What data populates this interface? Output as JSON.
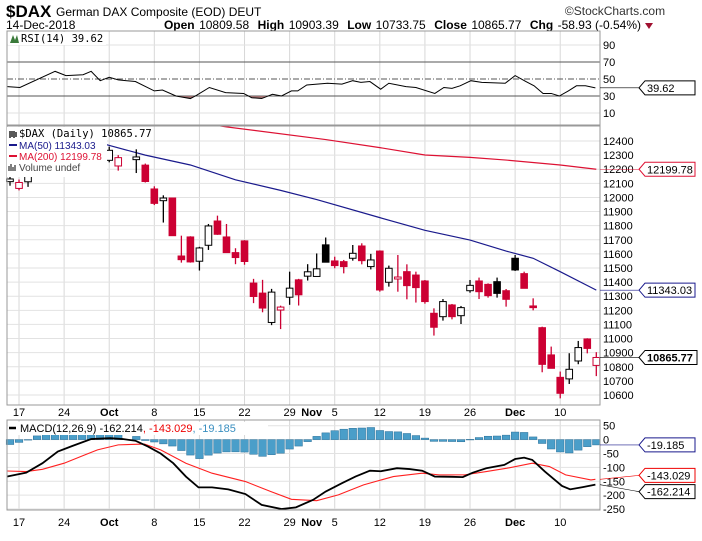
{
  "header": {
    "symbol": "$DAX",
    "name": "German DAX Composite (EOD) DEUT",
    "copyright": "©StockCharts.com",
    "date": "14-Dec-2018",
    "open_label": "Open",
    "open": "10809.58",
    "high_label": "High",
    "high": "10903.39",
    "low_label": "Low",
    "low": "10733.75",
    "close_label": "Close",
    "close": "10865.77",
    "chg_label": "Chg",
    "chg": "-58.93 (-0.54%)",
    "chg_icon": "triangle-down-icon"
  },
  "colors": {
    "up": "#000000",
    "down": "#cc0033",
    "ma50": "#1a1a8c",
    "ma200": "#dd1133",
    "hist": "#4a9ec9",
    "rsi_fill": "#a07070"
  },
  "chart_data": [
    {
      "type": "line",
      "title": "RSI(14) 39.62",
      "legend": "RSI(14) 39.62",
      "ylim": [
        0,
        100
      ],
      "yticks": [
        "90",
        "70",
        "50",
        "30",
        "10"
      ],
      "levels": [
        70,
        50,
        30
      ],
      "current_label": "39.62",
      "points": [
        [
          -0.3,
          41
        ],
        [
          1.1,
          40
        ],
        [
          5,
          59
        ],
        [
          6.2,
          54
        ],
        [
          8.1,
          55
        ],
        [
          9,
          59
        ],
        [
          10,
          48
        ],
        [
          11,
          52
        ],
        [
          12,
          49
        ],
        [
          13.9,
          47
        ],
        [
          16,
          36
        ],
        [
          16.9,
          37
        ],
        [
          18.4,
          30
        ],
        [
          20,
          27
        ],
        [
          20.7,
          31
        ],
        [
          22.1,
          40
        ],
        [
          23.9,
          34
        ],
        [
          25.9,
          33
        ],
        [
          26.8,
          28
        ],
        [
          27.9,
          27
        ],
        [
          29.1,
          32
        ],
        [
          30.1,
          30
        ],
        [
          31.2,
          36
        ],
        [
          31.9,
          36
        ],
        [
          32.9,
          43
        ],
        [
          35.2,
          45
        ],
        [
          36.8,
          44
        ],
        [
          38,
          48
        ],
        [
          38.9,
          46
        ],
        [
          39.9,
          47
        ],
        [
          41.1,
          38
        ],
        [
          42,
          45
        ],
        [
          43.9,
          41
        ],
        [
          45,
          40
        ],
        [
          47.1,
          33
        ],
        [
          48.1,
          40
        ],
        [
          49,
          39
        ],
        [
          49.9,
          42
        ],
        [
          51.1,
          48
        ],
        [
          52.3,
          46
        ],
        [
          54.9,
          45
        ],
        [
          56,
          54
        ],
        [
          57.2,
          47
        ],
        [
          58.1,
          42
        ],
        [
          59.1,
          33
        ],
        [
          60,
          33
        ],
        [
          60.9,
          30
        ],
        [
          61.9,
          36
        ],
        [
          62.8,
          42
        ],
        [
          63.8,
          42
        ],
        [
          64.9,
          39.62
        ]
      ]
    },
    {
      "type": "candlestick",
      "title": "$DAX (Daily) 10865.77",
      "legend": [
        {
          "name": "$DAX (Daily) 10865.77"
        },
        {
          "name": "MA(50) 11343.03"
        },
        {
          "name": "MA(200) 12199.78"
        },
        {
          "name": "Volume undef"
        }
      ],
      "ylim": [
        10500,
        12490
      ],
      "yticks": [
        "12400",
        "12300",
        "12200",
        "12100",
        "12000",
        "11900",
        "11800",
        "11700",
        "11600",
        "11500",
        "11400",
        "11300",
        "11200",
        "11100",
        "11000",
        "10900",
        "10800",
        "10700",
        "10600"
      ],
      "tags": {
        "ma200": "12199.78",
        "ma50": "11343.03",
        "close": "10865.77"
      },
      "candles": [
        {
          "d": 0,
          "o": 12112,
          "h": 12147,
          "l": 12083,
          "c": 12131
        },
        {
          "d": 1,
          "o": 12064,
          "h": 12127,
          "l": 12050,
          "c": 12106
        },
        {
          "d": 2,
          "o": 12111,
          "h": 12180,
          "l": 12075,
          "c": 12168
        },
        {
          "d": 3,
          "o": 12170,
          "h": 12195,
          "l": 12160,
          "c": 12185
        },
        {
          "d": 4,
          "o": 12200,
          "h": 12280,
          "l": 12190,
          "c": 12260
        },
        {
          "d": 5,
          "o": 12270,
          "h": 12350,
          "l": 12250,
          "c": 12330
        },
        {
          "d": 6,
          "o": 12340,
          "h": 12360,
          "l": 12280,
          "c": 12300
        },
        {
          "d": 7,
          "o": 12300,
          "h": 12380,
          "l": 12290,
          "c": 12360
        },
        {
          "d": 8,
          "o": 12370,
          "h": 12420,
          "l": 12350,
          "c": 12400
        },
        {
          "d": 9,
          "o": 12385,
          "h": 12410,
          "l": 12300,
          "c": 12380
        },
        {
          "d": 10,
          "o": 12376,
          "h": 12382,
          "l": 12190,
          "c": 12249
        },
        {
          "d": 11,
          "o": 12263,
          "h": 12360,
          "l": 12249,
          "c": 12334
        },
        {
          "d": 12,
          "o": 12223,
          "h": 12300,
          "l": 12190,
          "c": 12282
        },
        {
          "d": 14,
          "o": 12268,
          "h": 12341,
          "l": 12173,
          "c": 12287
        },
        {
          "d": 15,
          "o": 12229,
          "h": 12240,
          "l": 12106,
          "c": 12113
        },
        {
          "d": 16,
          "o": 12060,
          "h": 12079,
          "l": 11946,
          "c": 11958
        },
        {
          "d": 17,
          "o": 11977,
          "h": 12015,
          "l": 11822,
          "c": 11996
        },
        {
          "d": 18,
          "o": 11996,
          "h": 11996,
          "l": 11729,
          "c": 11729
        },
        {
          "d": 19,
          "o": 11585,
          "h": 11729,
          "l": 11538,
          "c": 11559
        },
        {
          "d": 20,
          "o": 11720,
          "h": 11725,
          "l": 11538,
          "c": 11543
        },
        {
          "d": 21,
          "o": 11548,
          "h": 11650,
          "l": 11482,
          "c": 11642
        },
        {
          "d": 22,
          "o": 11661,
          "h": 11812,
          "l": 11628,
          "c": 11798
        },
        {
          "d": 23,
          "o": 11833,
          "h": 11871,
          "l": 11735,
          "c": 11739
        },
        {
          "d": 24,
          "o": 11720,
          "h": 11812,
          "l": 11609,
          "c": 11609
        },
        {
          "d": 25,
          "o": 11609,
          "h": 11640,
          "l": 11527,
          "c": 11574
        },
        {
          "d": 26,
          "o": 11692,
          "h": 11697,
          "l": 11523,
          "c": 11546
        },
        {
          "d": 27,
          "o": 11393,
          "h": 11423,
          "l": 11251,
          "c": 11298
        },
        {
          "d": 28,
          "o": 11322,
          "h": 11416,
          "l": 11186,
          "c": 11216
        },
        {
          "d": 29,
          "o": 11114,
          "h": 11352,
          "l": 11095,
          "c": 11329
        },
        {
          "d": 30,
          "o": 11202,
          "h": 11233,
          "l": 11067,
          "c": 11223
        },
        {
          "d": 31,
          "o": 11293,
          "h": 11474,
          "l": 11239,
          "c": 11357
        },
        {
          "d": 32,
          "o": 11416,
          "h": 11423,
          "l": 11234,
          "c": 11310
        },
        {
          "d": 33,
          "o": 11442,
          "h": 11527,
          "l": 11411,
          "c": 11473
        },
        {
          "d": 34,
          "o": 11440,
          "h": 11603,
          "l": 11440,
          "c": 11494
        },
        {
          "d": 35,
          "o": 11664,
          "h": 11716,
          "l": 11540,
          "c": 11541
        },
        {
          "d": 36,
          "o": 11550,
          "h": 11580,
          "l": 11498,
          "c": 11517
        },
        {
          "d": 37,
          "o": 11545,
          "h": 11557,
          "l": 11462,
          "c": 11510
        },
        {
          "d": 38,
          "o": 11569,
          "h": 11663,
          "l": 11552,
          "c": 11604
        },
        {
          "d": 39,
          "o": 11656,
          "h": 11675,
          "l": 11526,
          "c": 11552
        },
        {
          "d": 40,
          "o": 11510,
          "h": 11600,
          "l": 11490,
          "c": 11557
        },
        {
          "d": 41,
          "o": 11620,
          "h": 11625,
          "l": 11332,
          "c": 11344
        },
        {
          "d": 42,
          "o": 11399,
          "h": 11517,
          "l": 11368,
          "c": 11498
        },
        {
          "d": 43,
          "o": 11422,
          "h": 11592,
          "l": 11332,
          "c": 11436
        },
        {
          "d": 44,
          "o": 11474,
          "h": 11526,
          "l": 11278,
          "c": 11375
        },
        {
          "d": 45,
          "o": 11450,
          "h": 11474,
          "l": 11255,
          "c": 11361
        },
        {
          "d": 46,
          "o": 11408,
          "h": 11415,
          "l": 11247,
          "c": 11262
        },
        {
          "d": 47,
          "o": 11179,
          "h": 11214,
          "l": 11021,
          "c": 11080
        },
        {
          "d": 48,
          "o": 11155,
          "h": 11280,
          "l": 11127,
          "c": 11262
        },
        {
          "d": 49,
          "o": 11238,
          "h": 11245,
          "l": 11136,
          "c": 11155
        },
        {
          "d": 50,
          "o": 11162,
          "h": 11231,
          "l": 11103,
          "c": 11219
        },
        {
          "d": 51,
          "o": 11339,
          "h": 11415,
          "l": 11325,
          "c": 11377
        },
        {
          "d": 52,
          "o": 11408,
          "h": 11432,
          "l": 11280,
          "c": 11332
        },
        {
          "d": 53,
          "o": 11384,
          "h": 11391,
          "l": 11290,
          "c": 11304
        },
        {
          "d": 54,
          "o": 11403,
          "h": 11432,
          "l": 11290,
          "c": 11320
        },
        {
          "d": 55,
          "o": 11339,
          "h": 11351,
          "l": 11226,
          "c": 11278
        },
        {
          "d": 56,
          "o": 11569,
          "h": 11592,
          "l": 11479,
          "c": 11486
        },
        {
          "d": 57,
          "o": 11460,
          "h": 11474,
          "l": 11356,
          "c": 11356
        },
        {
          "d": 58,
          "o": 11231,
          "h": 11285,
          "l": 11200,
          "c": 11219
        },
        {
          "d": 59,
          "o": 11077,
          "h": 11084,
          "l": 10761,
          "c": 10817
        },
        {
          "d": 60,
          "o": 10884,
          "h": 10943,
          "l": 10789,
          "c": 10789
        },
        {
          "d": 61,
          "o": 10725,
          "h": 10766,
          "l": 10576,
          "c": 10612
        },
        {
          "d": 62,
          "o": 10714,
          "h": 10896,
          "l": 10678,
          "c": 10782
        },
        {
          "d": 63,
          "o": 10841,
          "h": 10983,
          "l": 10818,
          "c": 10936
        },
        {
          "d": 64,
          "o": 10997,
          "h": 11002,
          "l": 10895,
          "c": 10930
        },
        {
          "d": 65,
          "o": 10809.58,
          "h": 10903.39,
          "l": 10733.75,
          "c": 10865.77
        }
      ],
      "ma50": [
        [
          9,
          12390
        ],
        [
          10,
          12386
        ],
        [
          15,
          12300
        ],
        [
          20,
          12230
        ],
        [
          25,
          12125
        ],
        [
          30,
          12050
        ],
        [
          34,
          11985
        ],
        [
          41,
          11857
        ],
        [
          46,
          11767
        ],
        [
          51,
          11698
        ],
        [
          55,
          11620
        ],
        [
          58,
          11569
        ],
        [
          61,
          11474
        ],
        [
          65,
          11343.03
        ]
      ],
      "ma200": [
        [
          23,
          12510
        ],
        [
          24,
          12500
        ],
        [
          35,
          12410
        ],
        [
          41,
          12353
        ],
        [
          46,
          12301
        ],
        [
          51,
          12284
        ],
        [
          55,
          12265
        ],
        [
          61,
          12230
        ],
        [
          65,
          12199.78
        ]
      ]
    },
    {
      "type": "line+bar",
      "title": "MACD(12,26,9)",
      "legend": {
        "name": "MACD(12,26,9)",
        "macd": "-162.214",
        "sep1": ",",
        "signal": "-143.029",
        "sep2": ",",
        "hist": "-19.185"
      },
      "ylim": [
        -270,
        60
      ],
      "yticks": [
        "50",
        "0",
        "-50",
        "-100",
        "-150",
        "-200",
        "-250"
      ],
      "tags": {
        "hist": "-19.185",
        "signal": "-143.029",
        "macd": "-162.214"
      },
      "macd": [
        [
          -0.3,
          -133
        ],
        [
          1.8,
          -119
        ],
        [
          3.6,
          -85
        ],
        [
          5.3,
          -43
        ],
        [
          6.9,
          -23
        ],
        [
          9,
          2
        ],
        [
          11.1,
          5
        ],
        [
          12.5,
          2
        ],
        [
          13.9,
          -4
        ],
        [
          15.3,
          -25
        ],
        [
          16.7,
          -50
        ],
        [
          18.1,
          -85
        ],
        [
          19.5,
          -133
        ],
        [
          20.9,
          -172
        ],
        [
          22.4,
          -172
        ],
        [
          24.2,
          -179
        ],
        [
          26.1,
          -196
        ],
        [
          27.9,
          -235
        ],
        [
          30.1,
          -250
        ],
        [
          31.7,
          -244
        ],
        [
          33.6,
          -217
        ],
        [
          35,
          -187
        ],
        [
          36.8,
          -157
        ],
        [
          38.3,
          -133
        ],
        [
          39.9,
          -112
        ],
        [
          41.1,
          -114
        ],
        [
          42.9,
          -103
        ],
        [
          44.3,
          -106
        ],
        [
          45.7,
          -112
        ],
        [
          47.1,
          -133
        ],
        [
          49,
          -134
        ],
        [
          50.2,
          -135
        ],
        [
          51.3,
          -119
        ],
        [
          52.8,
          -103
        ],
        [
          54.8,
          -91
        ],
        [
          56,
          -70
        ],
        [
          57,
          -65
        ],
        [
          57.9,
          -73
        ],
        [
          59.3,
          -115
        ],
        [
          61.2,
          -167
        ],
        [
          62.1,
          -179
        ],
        [
          63.5,
          -171
        ],
        [
          64.9,
          -162.214
        ]
      ],
      "signal": [
        [
          -0.3,
          -113
        ],
        [
          1.8,
          -115
        ],
        [
          3.6,
          -107
        ],
        [
          6,
          -85
        ],
        [
          8.3,
          -55
        ],
        [
          9.7,
          -37
        ],
        [
          12,
          -19
        ],
        [
          14.9,
          -16
        ],
        [
          16.7,
          -37
        ],
        [
          19.5,
          -85
        ],
        [
          22.4,
          -121
        ],
        [
          26.1,
          -151
        ],
        [
          28.9,
          -187
        ],
        [
          31.2,
          -215
        ],
        [
          34,
          -220
        ],
        [
          36.4,
          -199
        ],
        [
          39.2,
          -163
        ],
        [
          42.5,
          -133
        ],
        [
          45.7,
          -121
        ],
        [
          47.6,
          -127
        ],
        [
          50.4,
          -127
        ],
        [
          52.8,
          -115
        ],
        [
          55.1,
          -103
        ],
        [
          57.9,
          -85
        ],
        [
          59.8,
          -97
        ],
        [
          61.6,
          -127
        ],
        [
          64.4,
          -145
        ],
        [
          64.9,
          -143.029
        ]
      ]
    }
  ],
  "xaxis": {
    "labels": [
      {
        "d": 1,
        "t": "17",
        "bold": false
      },
      {
        "d": 6,
        "t": "24",
        "bold": false
      },
      {
        "d": 11,
        "t": "Oct",
        "bold": true
      },
      {
        "d": 16,
        "t": "8",
        "bold": false
      },
      {
        "d": 21,
        "t": "15",
        "bold": false
      },
      {
        "d": 26,
        "t": "22",
        "bold": false
      },
      {
        "d": 31,
        "t": "29",
        "bold": false
      },
      {
        "d": 34,
        "t": "Nov",
        "bold": true
      },
      {
        "d": 36,
        "t": "5",
        "bold": false
      },
      {
        "d": 41,
        "t": "12",
        "bold": false
      },
      {
        "d": 46,
        "t": "19",
        "bold": false
      },
      {
        "d": 51,
        "t": "26",
        "bold": false
      },
      {
        "d": 56,
        "t": "Dec",
        "bold": true
      },
      {
        "d": 61,
        "t": "10",
        "bold": false
      }
    ]
  }
}
